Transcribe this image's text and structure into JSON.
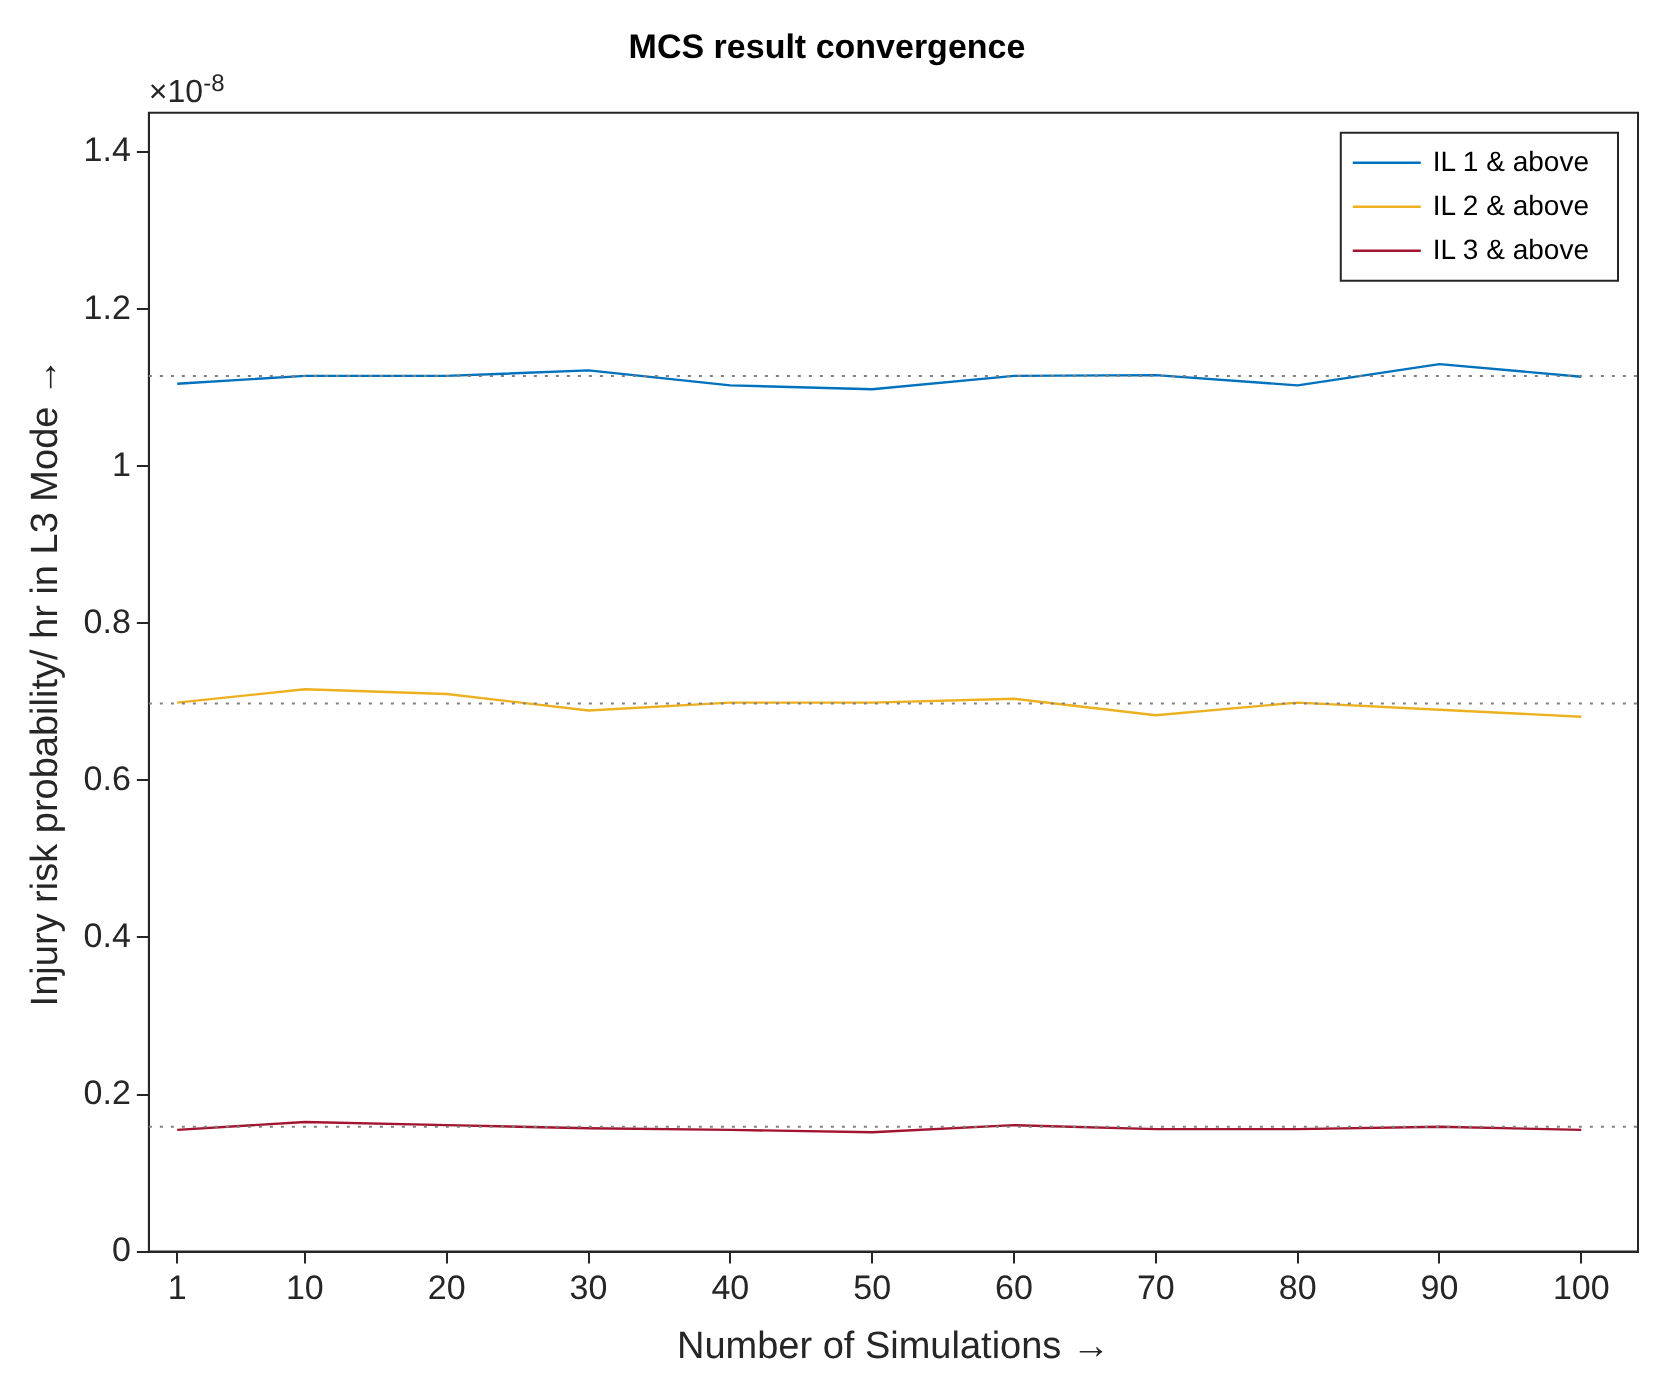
{
  "chart_data": {
    "type": "line",
    "title": "MCS result convergence",
    "xlabel": "Number of Simulations →",
    "ylabel": "Injury risk probability/ hr in L3 Mode →",
    "annotations": [
      "×10$^{-8}$"
    ],
    "x": [
      1,
      10,
      20,
      30,
      40,
      50,
      60,
      70,
      80,
      90,
      100
    ],
    "series": [
      {
        "name": "IL 1 & above",
        "color": "#0072bd",
        "values": [
          1.105,
          1.115,
          1.115,
          1.122,
          1.103,
          1.098,
          1.115,
          1.116,
          1.103,
          1.13,
          1.114
        ]
      },
      {
        "name": "IL 2 & above",
        "color": "#edb120",
        "values": [
          0.699,
          0.716,
          0.71,
          0.689,
          0.699,
          0.699,
          0.704,
          0.683,
          0.699,
          0.69,
          0.681
        ]
      },
      {
        "name": "IL 3 & above",
        "color": "#a2142f",
        "values": [
          0.155,
          0.165,
          0.161,
          0.157,
          0.155,
          0.152,
          0.161,
          0.156,
          0.156,
          0.159,
          0.155
        ]
      }
    ],
    "ref_lines": [
      {
        "axis": "y",
        "value": 1.115,
        "color": "#808080",
        "line_style": "dotted"
      },
      {
        "axis": "y",
        "value": 0.698,
        "color": "#808080",
        "line_style": "dotted"
      },
      {
        "axis": "y",
        "value": 0.159,
        "color": "#808080",
        "line_style": "dotted"
      }
    ],
    "xlim": [
      -1,
      104
    ],
    "xticks": [
      1,
      10,
      20,
      30,
      40,
      50,
      60,
      70,
      80,
      90,
      100
    ],
    "ylim": [
      0,
      1.45
    ],
    "yticks": [
      0,
      0.2,
      0.4,
      0.6,
      0.8,
      1,
      1.2,
      1.4
    ],
    "legend": "top right",
    "marker": "none",
    "line_style": "solid"
  }
}
